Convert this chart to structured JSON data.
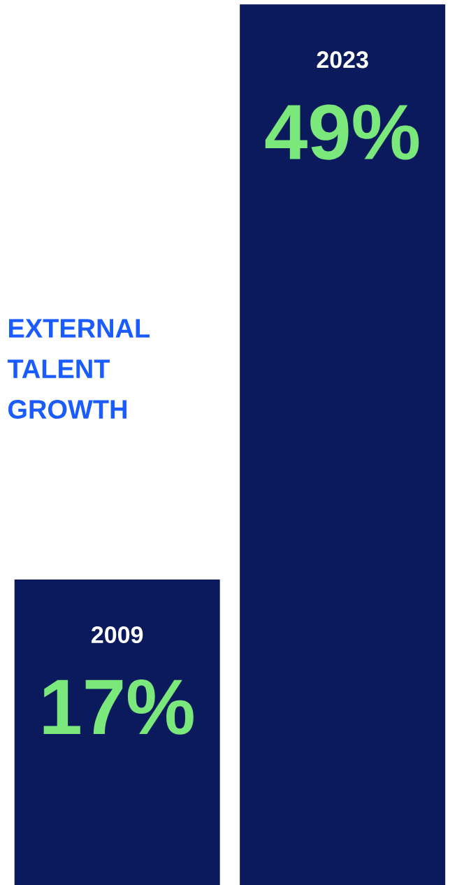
{
  "chart_data": {
    "type": "bar",
    "title": "EXTERNAL TALENT GROWTH",
    "categories": [
      "2009",
      "2023"
    ],
    "values": [
      17,
      49
    ],
    "value_labels": [
      "17%",
      "49%"
    ],
    "color": "#0b1a5c"
  }
}
